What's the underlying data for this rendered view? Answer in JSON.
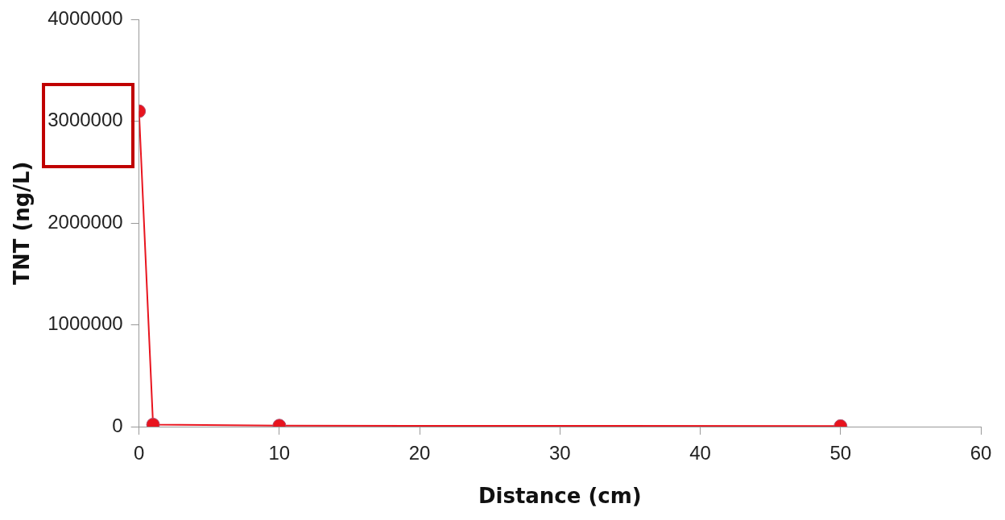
{
  "chart_data": {
    "type": "line",
    "xlabel": "Distance (cm)",
    "ylabel": "TNT (ng/L)",
    "x": [
      0,
      1,
      10,
      50
    ],
    "series": [
      {
        "color": "#e8141e",
        "values": [
          3100000,
          20000,
          10000,
          5000
        ]
      }
    ],
    "xlim": [
      0,
      60
    ],
    "xticks": [
      0,
      10,
      20,
      30,
      40,
      50,
      60
    ],
    "ylim": [
      0,
      4000000
    ],
    "yticks": [
      0,
      1000000,
      2000000,
      3000000,
      4000000
    ],
    "grid": false,
    "legend": false,
    "marker": "circle",
    "line_style": "solid"
  }
}
